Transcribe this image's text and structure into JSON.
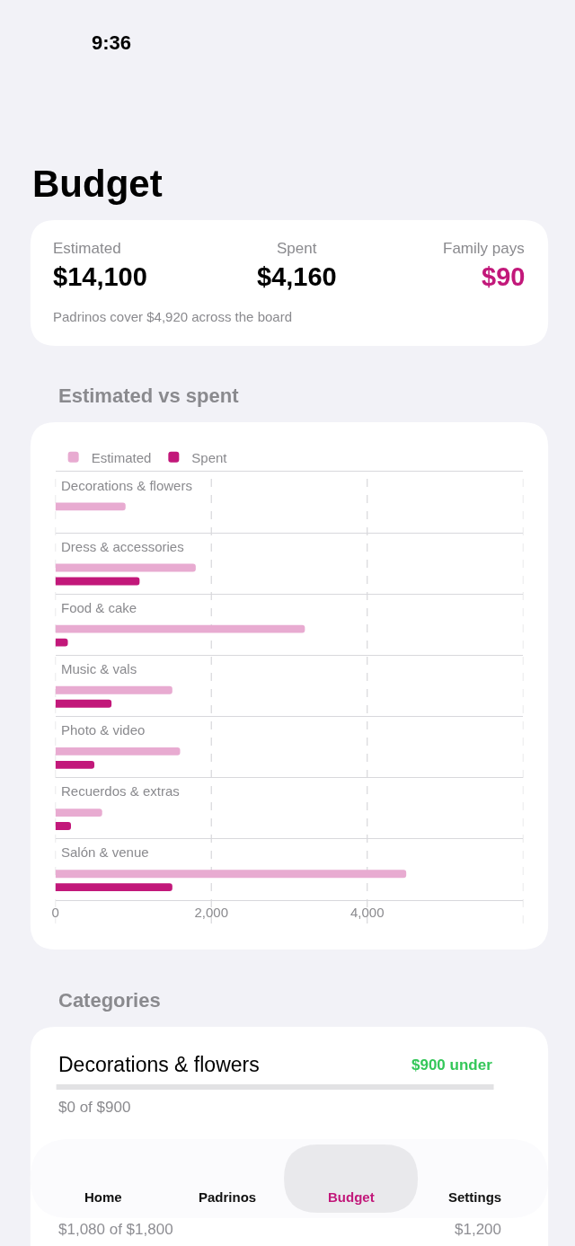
{
  "chart_data": [
    {
      "type": "other",
      "title": "Budget",
      "annotations": [
        "9:36",
        "Estimated",
        "$14,100",
        "Spent",
        "$4,160",
        "Family pays",
        "$90",
        "Padrinos cover $4,920 across the board"
      ]
    },
    {
      "type": "bar",
      "orientation": "horizontal",
      "title": "Estimated vs spent",
      "categories": [
        "Decorations & flowers",
        "Dress & accessories",
        "Food & cake",
        "Music & vals",
        "Photo & video",
        "Recuerdos & extras",
        "Salón & venue"
      ],
      "series": [
        {
          "name": "Estimated",
          "color": "#e8abd1",
          "values": [
            900,
            1800,
            3200,
            1500,
            1600,
            600,
            4500
          ]
        },
        {
          "name": "Spent",
          "color": "#c2187a",
          "values": [
            0,
            1080,
            160,
            720,
            500,
            200,
            1500
          ]
        }
      ],
      "xlim": [
        0,
        6000
      ],
      "xticks": [
        0,
        {
          "value": 2000,
          "label": "2,000"
        },
        {
          "value": 4000,
          "label": "4,000"
        },
        {
          "value": 6000,
          "label": null
        }
      ],
      "grid": true,
      "legend": "top left"
    },
    {
      "type": "other",
      "title": "Categories",
      "annotations": [
        "Decorations & flowers",
        "$900 under",
        "$0 of $900",
        "Home",
        "Padrinos",
        "Budget",
        "Settings",
        "$1,080 of $1,800",
        "$1,200"
      ]
    }
  ]
}
